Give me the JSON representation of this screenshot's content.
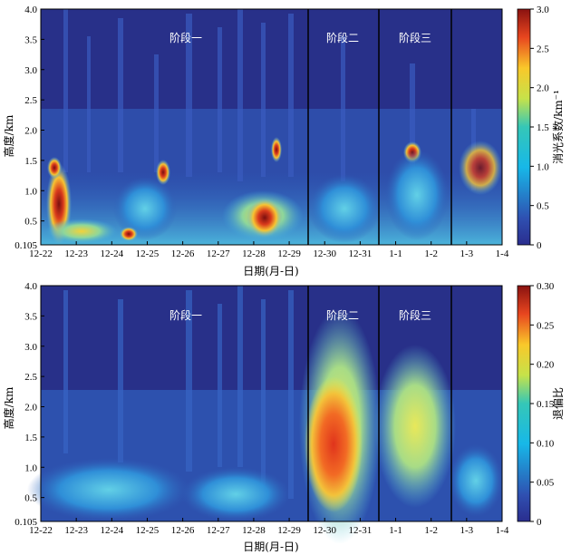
{
  "chart_data": [
    {
      "type": "heatmap",
      "title": "",
      "xlabel": "日期(月-日)",
      "ylabel": "高度/km",
      "x_ticks": [
        "12-22",
        "12-23",
        "12-24",
        "12-25",
        "12-26",
        "12-27",
        "12-28",
        "12-29",
        "12-30",
        "12-31",
        "1-1",
        "1-2",
        "1-3",
        "1-4"
      ],
      "y_ticks": [
        "0.105",
        "0.5",
        "1.0",
        "1.5",
        "2.0",
        "2.5",
        "3.0",
        "3.5",
        "4.0"
      ],
      "ylim": [
        0.105,
        4.0
      ],
      "colorbar": {
        "label": "消光系数/km⁻¹",
        "range": [
          0,
          3.0
        ],
        "ticks": [
          "0",
          "0.5",
          "1.0",
          "1.5",
          "2.0",
          "2.5",
          "3.0"
        ],
        "colormap": "jet"
      },
      "phase_dividers": [
        "12-29 12:00",
        "12-31 12:00",
        "1-2 08:00"
      ],
      "phase_labels": [
        "阶段一",
        "阶段二",
        "阶段三"
      ],
      "phase_positions": [
        "12-26",
        "12-30",
        "1-1"
      ]
    },
    {
      "type": "heatmap",
      "title": "",
      "xlabel": "日期(月-日)",
      "ylabel": "高度/km",
      "x_ticks": [
        "12-22",
        "12-23",
        "12-24",
        "12-25",
        "12-26",
        "12-27",
        "12-28",
        "12-29",
        "12-30",
        "12-31",
        "1-1",
        "1-2",
        "1-3",
        "1-4"
      ],
      "y_ticks": [
        "0.105",
        "0.5",
        "1.0",
        "1.5",
        "2.0",
        "2.5",
        "3.0",
        "3.5",
        "4.0"
      ],
      "ylim": [
        0.105,
        4.0
      ],
      "colorbar": {
        "label": "退偏比",
        "range": [
          0,
          0.3
        ],
        "ticks": [
          "0",
          "0.05",
          "0.10",
          "0.15",
          "0.20",
          "0.25",
          "0.30"
        ],
        "colormap": "jet"
      },
      "phase_dividers": [
        "12-29 12:00",
        "12-31 12:00",
        "1-2 08:00"
      ],
      "phase_labels": [
        "阶段一",
        "阶段二",
        "阶段三"
      ],
      "phase_positions": [
        "12-26",
        "12-30",
        "1-1"
      ]
    }
  ]
}
